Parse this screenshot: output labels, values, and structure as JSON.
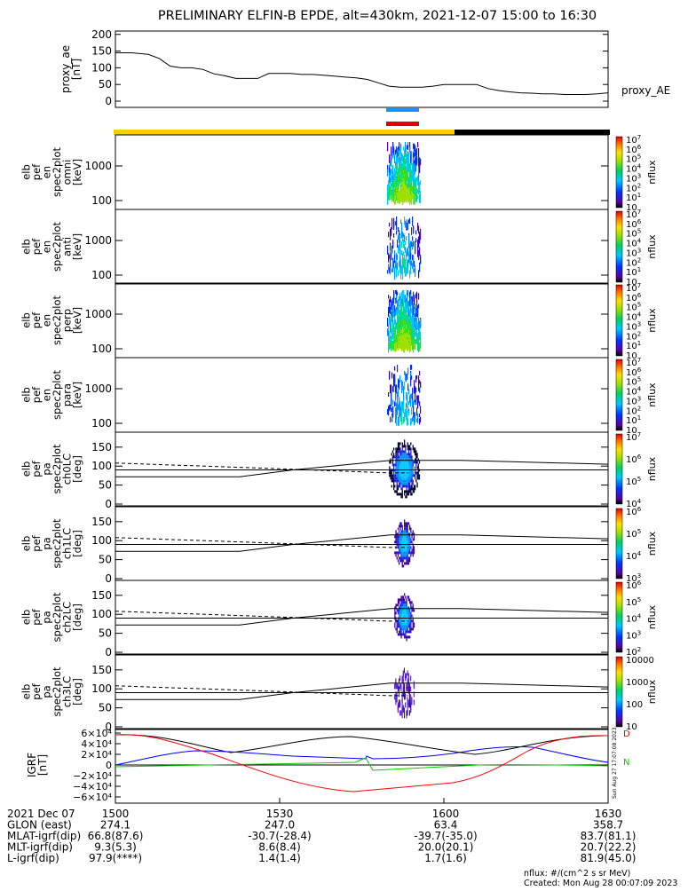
{
  "title": "PRELIMINARY ELFIN-B EPDE, alt=430km, 2021-12-07 15:00 to 16:30",
  "colors": {
    "bar_yellow": "#f5d000",
    "bar_black": "#000000",
    "blue_bar": "#1e90ff",
    "red_bar": "#e00000",
    "bx_color": "#0000ff",
    "by_color": "#00cc00",
    "bz_color": "#ff0000",
    "total_color": "#000000"
  },
  "chart_data": [
    {
      "id": "proxy_ae",
      "type": "line",
      "ylabel": [
        "proxy_ae",
        "[nT]"
      ],
      "yticks": [
        "200",
        "150",
        "100",
        "50",
        "0"
      ],
      "ylim": [
        0,
        210
      ],
      "legend": "proxy_AE",
      "x_range": [
        0,
        90
      ],
      "x": [
        0,
        3,
        6,
        8,
        10,
        12,
        14,
        16,
        18,
        20,
        22,
        24,
        26,
        28,
        30,
        32,
        34,
        36,
        38,
        40,
        42,
        44,
        46,
        48,
        50,
        52,
        54,
        56,
        58,
        60,
        62,
        64,
        66,
        68,
        70,
        72,
        74,
        76,
        78,
        80,
        82,
        84,
        86,
        88,
        90
      ],
      "y": [
        145,
        145,
        140,
        128,
        105,
        100,
        100,
        95,
        82,
        76,
        68,
        68,
        68,
        83,
        83,
        83,
        80,
        80,
        78,
        75,
        72,
        70,
        65,
        55,
        45,
        42,
        42,
        42,
        45,
        50,
        50,
        50,
        50,
        38,
        32,
        28,
        25,
        24,
        22,
        22,
        20,
        20,
        20,
        22,
        25
      ]
    },
    {
      "id": "spec_energy",
      "type": "heatmap",
      "panels": [
        {
          "ylabel": [
            "elb",
            "pef",
            "en",
            "spec2plot",
            "omni",
            "[keV]"
          ],
          "density": 1.0
        },
        {
          "ylabel": [
            "elb",
            "pef",
            "en",
            "spec2plot",
            "anti",
            "[keV]"
          ],
          "density": 0.35
        },
        {
          "ylabel": [
            "elb",
            "pef",
            "en",
            "spec2plot",
            "perp",
            "[keV]"
          ],
          "density": 1.0
        },
        {
          "ylabel": [
            "elb",
            "pef",
            "en",
            "spec2plot",
            "para",
            "[keV]"
          ],
          "density": 0.3
        }
      ],
      "yticks": [
        "1000",
        "100"
      ],
      "scale": "log",
      "colorbar_label": "nflux",
      "colorbar_ticks": [
        "10",
        "10",
        "10",
        "10",
        "10",
        "10",
        "10",
        "10"
      ],
      "colorbar_exponents": [
        "7",
        "6",
        "5",
        "4",
        "3",
        "2",
        "1",
        ""
      ]
    },
    {
      "id": "spec_pitch",
      "type": "heatmap",
      "panels": [
        {
          "ylabel": [
            "elb",
            "pef",
            "pa",
            "spec2plot",
            "ch0LC",
            "[deg]"
          ],
          "cb_ticks": [
            "10",
            "10",
            "10"
          ],
          "cb_exp": [
            "7",
            "6",
            "5",
            "4"
          ]
        },
        {
          "ylabel": [
            "elb",
            "pef",
            "pa",
            "spec2plot",
            "ch1LC",
            "[deg]"
          ],
          "cb_ticks": [
            "10",
            "10",
            "10"
          ],
          "cb_exp": [
            "6",
            "5",
            "4",
            "3"
          ]
        },
        {
          "ylabel": [
            "elb",
            "pef",
            "pa",
            "spec2plot",
            "ch2LC",
            "[deg]"
          ],
          "cb_ticks": [
            "10",
            "10",
            "10"
          ],
          "cb_exp": [
            "6",
            "5",
            "4",
            "3",
            "2"
          ]
        },
        {
          "ylabel": [
            "elb",
            "pef",
            "pa",
            "spec2plot",
            "ch3LC",
            "[deg]"
          ],
          "cb_ticks": [
            "10000",
            "1000",
            "100",
            "10"
          ],
          "cb_exp": []
        }
      ],
      "yticks": [
        "150",
        "100",
        "50",
        "0"
      ],
      "ylim": [
        0,
        180
      ],
      "colorbar_label": "nflux"
    },
    {
      "id": "igrf",
      "type": "line",
      "ylabel": [
        "IGRF",
        "[nT]"
      ],
      "yticks": [
        "6×10⁴",
        "4×10⁴",
        "2×10⁴",
        "0",
        "−2×10⁴",
        "−4×10⁴",
        "−6×10⁴"
      ],
      "ylim": [
        -60000,
        60000
      ],
      "series": [
        {
          "name": "D",
          "color": "#ff0000"
        },
        {
          "name": "N",
          "color": "#00cc00"
        }
      ]
    }
  ],
  "orbit_table": {
    "rows": [
      {
        "label": "2021 Dec 07",
        "cols": [
          "1500",
          "1530",
          "1600",
          "1630"
        ]
      },
      {
        "label": "GLON (east)",
        "cols": [
          "274.1",
          "247.0",
          "63.4",
          "358.7"
        ]
      },
      {
        "label": "MLAT-igrf(dip)",
        "cols": [
          "66.8(87.6)",
          "-30.7(-28.4)",
          "-39.7(-35.0)",
          "83.7(81.1)"
        ]
      },
      {
        "label": "MLT-igrf(dip)",
        "cols": [
          "9.3(5.3)",
          "8.6(8.4)",
          "20.0(20.1)",
          "20.7(22.2)"
        ]
      },
      {
        "label": "L-igrf(dip)",
        "cols": [
          "97.9(****)",
          "1.4(1.4)",
          "1.7(1.6)",
          "81.9(45.0)"
        ]
      }
    ]
  },
  "footer": {
    "units": "nflux: #/(cm^2 s sr MeV)",
    "created": "Created: Mon Aug 28 00:07:09 2023"
  },
  "side_stamp": "Sun Aug 27 17:07:08 2023"
}
